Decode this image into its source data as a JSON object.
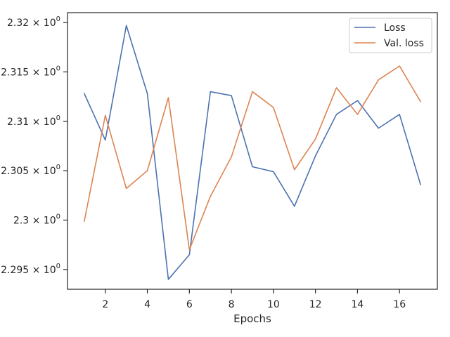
{
  "chart_data": {
    "type": "line",
    "x": [
      1,
      2,
      3,
      4,
      5,
      6,
      7,
      8,
      9,
      10,
      11,
      12,
      13,
      14,
      15,
      16,
      17
    ],
    "series": [
      {
        "name": "Loss",
        "color": "#4c72b0",
        "values": [
          2.3128,
          2.3081,
          2.3197,
          2.3128,
          2.294,
          2.2965,
          2.313,
          2.3126,
          2.3054,
          2.3049,
          2.3014,
          2.3065,
          2.3107,
          2.3121,
          2.3093,
          2.3107,
          2.3036
        ]
      },
      {
        "name": "Val. loss",
        "color": "#dd8452",
        "values": [
          2.2999,
          2.3106,
          2.3032,
          2.305,
          2.3124,
          2.297,
          2.3024,
          2.3064,
          2.313,
          2.3114,
          2.3051,
          2.3082,
          2.3134,
          2.3107,
          2.3142,
          2.3156,
          2.312
        ]
      }
    ],
    "xlabel": "Epochs",
    "ylabel": "",
    "xlim": [
      0.2,
      17.8
    ],
    "ylim": [
      2.293,
      2.321
    ],
    "xticks": [
      2,
      4,
      6,
      8,
      10,
      12,
      14,
      16
    ],
    "xtick_labels": [
      "2",
      "4",
      "6",
      "8",
      "10",
      "12",
      "14",
      "16"
    ],
    "yticks": [
      2.295,
      2.3,
      2.305,
      2.31,
      2.315,
      2.32
    ],
    "ytick_labels": [
      {
        "mantissa": "2.295",
        "sep": "×",
        "base": "10",
        "exp": "0"
      },
      {
        "mantissa": "2.3",
        "sep": "×",
        "base": "10",
        "exp": "0"
      },
      {
        "mantissa": "2.305",
        "sep": "×",
        "base": "10",
        "exp": "0"
      },
      {
        "mantissa": "2.31",
        "sep": "×",
        "base": "10",
        "exp": "0"
      },
      {
        "mantissa": "2.315",
        "sep": "×",
        "base": "10",
        "exp": "0"
      },
      {
        "mantissa": "2.32",
        "sep": "×",
        "base": "10",
        "exp": "0"
      }
    ],
    "yscale": "log",
    "grid": false,
    "legend": "top-right"
  }
}
